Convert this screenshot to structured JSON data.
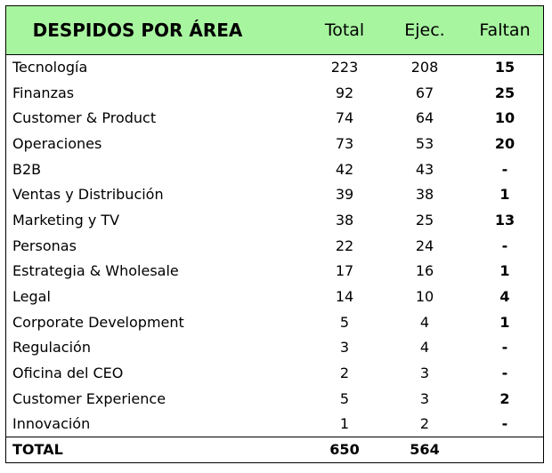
{
  "header": {
    "title": "DESPIDOS POR ÁREA",
    "total": "Total",
    "ejec": "Ejec.",
    "faltan": "Faltan"
  },
  "rows": [
    {
      "area": "Tecnología",
      "total": "223",
      "ejec": "208",
      "faltan": "15"
    },
    {
      "area": "Finanzas",
      "total": "92",
      "ejec": "67",
      "faltan": "25"
    },
    {
      "area": "Customer & Product",
      "total": "74",
      "ejec": "64",
      "faltan": "10"
    },
    {
      "area": "Operaciones",
      "total": "73",
      "ejec": "53",
      "faltan": "20"
    },
    {
      "area": "B2B",
      "total": "42",
      "ejec": "43",
      "faltan": "-"
    },
    {
      "area": "Ventas y Distribución",
      "total": "39",
      "ejec": "38",
      "faltan": "1"
    },
    {
      "area": "Marketing y TV",
      "total": "38",
      "ejec": "25",
      "faltan": "13"
    },
    {
      "area": "Personas",
      "total": "22",
      "ejec": "24",
      "faltan": "-"
    },
    {
      "area": "Estrategia & Wholesale",
      "total": "17",
      "ejec": "16",
      "faltan": "1"
    },
    {
      "area": "Legal",
      "total": "14",
      "ejec": "10",
      "faltan": "4"
    },
    {
      "area": "Corporate Development",
      "total": "5",
      "ejec": "4",
      "faltan": "1"
    },
    {
      "area": "Regulación",
      "total": "3",
      "ejec": "4",
      "faltan": "-"
    },
    {
      "area": "Oficina del CEO",
      "total": "2",
      "ejec": "3",
      "faltan": "-"
    },
    {
      "area": "Customer Experience",
      "total": "5",
      "ejec": "3",
      "faltan": "2"
    },
    {
      "area": "Innovación",
      "total": "1",
      "ejec": "2",
      "faltan": "-"
    }
  ],
  "totals": {
    "label": "TOTAL",
    "total": "650",
    "ejec": "564"
  },
  "colors": {
    "header_bg": "#a8f5a0",
    "border": "#000000"
  }
}
